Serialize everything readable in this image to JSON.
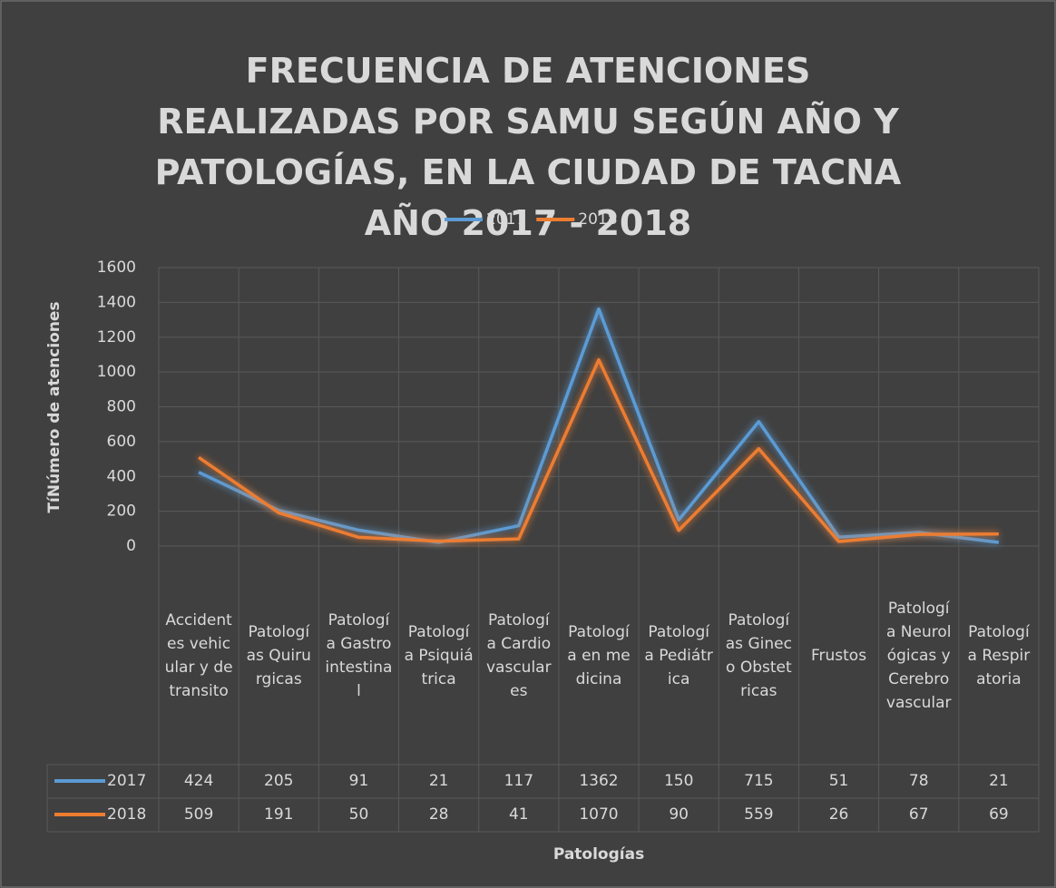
{
  "chart_data": {
    "type": "line",
    "title": "FRECUENCIA DE ATENCIONES REALIZADAS POR SAMU SEGÚN AÑO Y PATOLOGÍAS, EN LA CIUDAD DE TACNA AÑO 2017 - 2018",
    "xlabel": "Patologías",
    "ylabel": "TíNúmero de atenciones",
    "categories": [
      "Accidentes vehicular y de transito",
      "Patologías Quirurgicas",
      "Patología Gastrointestinal",
      "Patología Psiquiátrica",
      "Patología Cardiovasculares",
      "Patología en medicina",
      "Patología Pediátrica",
      "Patologías Gineco Obstetricas",
      "Frustos",
      "Patología Neurológicas y Cerebrovascular",
      "Patología Respiratoria"
    ],
    "series": [
      {
        "name": "2017",
        "color": "#5b9bd5",
        "values": [
          424,
          205,
          91,
          21,
          117,
          1362,
          150,
          715,
          51,
          78,
          21
        ]
      },
      {
        "name": "2018",
        "color": "#ed7d31",
        "values": [
          509,
          191,
          50,
          28,
          41,
          1070,
          90,
          559,
          26,
          67,
          69
        ]
      }
    ],
    "ylim": [
      0,
      1600
    ],
    "yticks": [
      0,
      200,
      400,
      600,
      800,
      1000,
      1200,
      1400,
      1600
    ],
    "grid": true,
    "legend": "top"
  }
}
